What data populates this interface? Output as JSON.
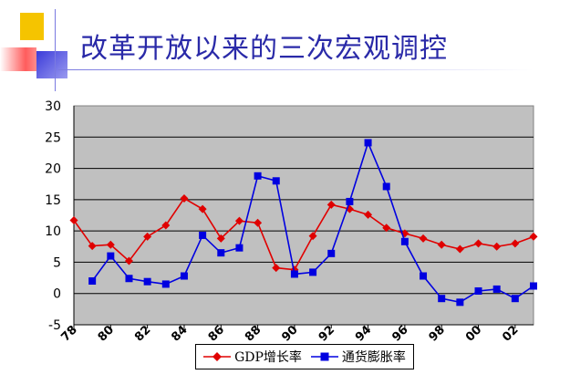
{
  "slide": {
    "title": "改革开放以来的三次宏观调控"
  },
  "colors": {
    "accent_yellow": "#f5c400",
    "accent_red": "#ff4a4a",
    "accent_blue": "#3b3bd9",
    "title_blue": "#2a2aa8",
    "plot_bg": "#c0c0c0"
  },
  "chart_data": {
    "type": "line",
    "title": "",
    "xlabel": "",
    "ylabel": "",
    "ylim": [
      -5,
      30
    ],
    "yticks": [
      -5,
      0,
      5,
      10,
      15,
      20,
      25,
      30
    ],
    "ytick_labels": [
      "-5",
      "0",
      "5",
      "10",
      "15",
      "20",
      "25",
      "30"
    ],
    "xlim": [
      78,
      103
    ],
    "xticks": [
      78,
      80,
      82,
      84,
      86,
      88,
      90,
      92,
      94,
      96,
      98,
      0,
      2
    ],
    "xtick_labels": [
      "78",
      "80",
      "82",
      "84",
      "86",
      "88",
      "90",
      "92",
      "94",
      "96",
      "98",
      "00",
      "02"
    ],
    "grid": true,
    "legend_position": "bottom",
    "x": [
      78,
      79,
      80,
      81,
      82,
      83,
      84,
      85,
      86,
      87,
      88,
      89,
      90,
      91,
      92,
      93,
      94,
      95,
      96,
      97,
      98,
      99,
      100,
      101,
      102,
      103
    ],
    "series": [
      {
        "name": "GDP增长率",
        "color": "#e00000",
        "marker": "diamond",
        "values": [
          11.7,
          7.6,
          7.8,
          5.2,
          9.1,
          10.9,
          15.2,
          13.5,
          8.8,
          11.6,
          11.3,
          4.1,
          3.8,
          9.2,
          14.2,
          13.5,
          12.6,
          10.5,
          9.6,
          8.8,
          7.8,
          7.1,
          8.0,
          7.5,
          8.0,
          9.1
        ]
      },
      {
        "name": "通货膨胀率",
        "color": "#0000e0",
        "marker": "square",
        "values": [
          null,
          2.0,
          6.0,
          2.4,
          1.9,
          1.5,
          2.8,
          9.3,
          6.5,
          7.3,
          18.8,
          18.0,
          3.1,
          3.4,
          6.4,
          14.7,
          24.1,
          17.1,
          8.3,
          2.8,
          -0.8,
          -1.4,
          0.4,
          0.7,
          -0.8,
          1.2
        ]
      }
    ]
  }
}
